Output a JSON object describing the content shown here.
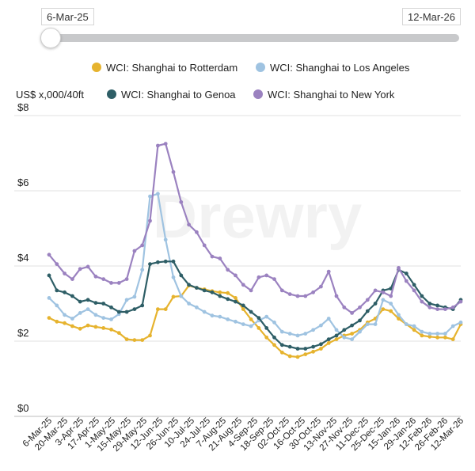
{
  "range": {
    "start": "6-Mar-25",
    "end": "12-Mar-26",
    "slider_position": 0
  },
  "chart_data": {
    "type": "line",
    "ylabel": "US$ x,000/40ft",
    "yticks": [
      "$0",
      "$2",
      "$4",
      "$6",
      "$8"
    ],
    "ylim": [
      0,
      8
    ],
    "grid": "horizontal",
    "legend_position": "top",
    "watermark": "Drewry",
    "x_tick_labels": [
      "6-Mar-25",
      "20-Mar-25",
      "3-Apr-25",
      "17-Apr-25",
      "1-May-25",
      "15-May-25",
      "29-May-25",
      "12-Jun-25",
      "26-Jun-25",
      "10-Jul-25",
      "24-Jul-25",
      "7-Aug-25",
      "21-Aug-25",
      "4-Sep-25",
      "18-Sep-25",
      "02-Oct-25",
      "16-Oct-25",
      "30-Oct-25",
      "13-Nov-25",
      "27-Nov-25",
      "11-Dec-25",
      "25-Dec-25",
      "15-Jan-26",
      "29-Jan-26",
      "12-Feb-26",
      "26-Feb-26",
      "12-Mar-26"
    ],
    "x": [
      "2025-03-06",
      "2025-03-13",
      "2025-03-20",
      "2025-03-27",
      "2025-04-03",
      "2025-04-10",
      "2025-04-17",
      "2025-04-24",
      "2025-05-01",
      "2025-05-08",
      "2025-05-15",
      "2025-05-22",
      "2025-05-29",
      "2025-06-05",
      "2025-06-12",
      "2025-06-19",
      "2025-06-26",
      "2025-07-03",
      "2025-07-10",
      "2025-07-17",
      "2025-07-24",
      "2025-07-31",
      "2025-08-07",
      "2025-08-14",
      "2025-08-21",
      "2025-08-28",
      "2025-09-04",
      "2025-09-11",
      "2025-09-18",
      "2025-09-25",
      "2025-10-02",
      "2025-10-09",
      "2025-10-16",
      "2025-10-23",
      "2025-10-30",
      "2025-11-06",
      "2025-11-13",
      "2025-11-20",
      "2025-11-27",
      "2025-12-04",
      "2025-12-11",
      "2025-12-18",
      "2025-12-25",
      "2026-01-01",
      "2026-01-08",
      "2026-01-15",
      "2026-01-22",
      "2026-01-29",
      "2026-02-05",
      "2026-02-12",
      "2026-02-19",
      "2026-02-26",
      "2026-03-05",
      "2026-03-12"
    ],
    "series": [
      {
        "name": "WCI: Shanghai to Rotterdam",
        "color": "#e6b32e",
        "values": [
          2.62,
          2.52,
          2.48,
          2.4,
          2.33,
          2.42,
          2.38,
          2.35,
          2.31,
          2.22,
          2.05,
          2.03,
          2.03,
          2.15,
          2.85,
          2.85,
          3.18,
          3.2,
          3.48,
          3.42,
          3.38,
          3.33,
          3.3,
          3.28,
          3.15,
          2.85,
          2.58,
          2.35,
          2.1,
          1.9,
          1.7,
          1.6,
          1.58,
          1.65,
          1.72,
          1.8,
          1.95,
          2.05,
          2.15,
          2.2,
          2.3,
          2.5,
          2.6,
          2.85,
          2.8,
          2.6,
          2.45,
          2.3,
          2.15,
          2.12,
          2.1,
          2.1,
          2.05,
          2.45
        ]
      },
      {
        "name": "WCI: Shanghai to Los Angeles",
        "color": "#9fc3e1",
        "values": [
          3.15,
          2.95,
          2.7,
          2.6,
          2.75,
          2.85,
          2.7,
          2.62,
          2.58,
          2.72,
          3.1,
          3.18,
          3.9,
          5.85,
          5.92,
          4.7,
          3.7,
          3.2,
          3.0,
          2.9,
          2.78,
          2.68,
          2.65,
          2.58,
          2.52,
          2.45,
          2.4,
          2.55,
          2.65,
          2.5,
          2.25,
          2.2,
          2.15,
          2.2,
          2.3,
          2.42,
          2.6,
          2.3,
          2.1,
          2.05,
          2.25,
          2.45,
          2.45,
          3.1,
          3.0,
          2.7,
          2.45,
          2.4,
          2.25,
          2.2,
          2.2,
          2.2,
          2.4,
          2.5
        ]
      },
      {
        "name": "WCI: Shanghai to Genoa",
        "color": "#2e5e66",
        "values": [
          3.75,
          3.35,
          3.3,
          3.2,
          3.05,
          3.1,
          3.02,
          3.0,
          2.9,
          2.78,
          2.78,
          2.85,
          2.95,
          4.05,
          4.1,
          4.12,
          4.12,
          3.75,
          3.5,
          3.42,
          3.35,
          3.3,
          3.2,
          3.12,
          3.05,
          2.95,
          2.78,
          2.62,
          2.35,
          2.1,
          1.9,
          1.85,
          1.8,
          1.8,
          1.85,
          1.92,
          2.05,
          2.15,
          2.3,
          2.42,
          2.55,
          2.8,
          3.0,
          3.35,
          3.4,
          3.9,
          3.8,
          3.5,
          3.2,
          3.0,
          2.95,
          2.9,
          2.85,
          3.1
        ]
      },
      {
        "name": "WCI: Shanghai to New York",
        "color": "#9b82c0",
        "values": [
          4.3,
          4.05,
          3.8,
          3.65,
          3.92,
          3.98,
          3.72,
          3.65,
          3.55,
          3.55,
          3.65,
          4.4,
          4.55,
          5.2,
          7.2,
          7.25,
          6.5,
          5.7,
          5.1,
          4.9,
          4.55,
          4.25,
          4.2,
          3.9,
          3.75,
          3.5,
          3.35,
          3.7,
          3.75,
          3.65,
          3.35,
          3.25,
          3.2,
          3.2,
          3.3,
          3.45,
          3.85,
          3.2,
          2.9,
          2.75,
          2.9,
          3.1,
          3.35,
          3.3,
          3.2,
          3.95,
          3.6,
          3.35,
          3.05,
          2.9,
          2.85,
          2.85,
          2.9,
          3.05
        ]
      }
    ]
  }
}
